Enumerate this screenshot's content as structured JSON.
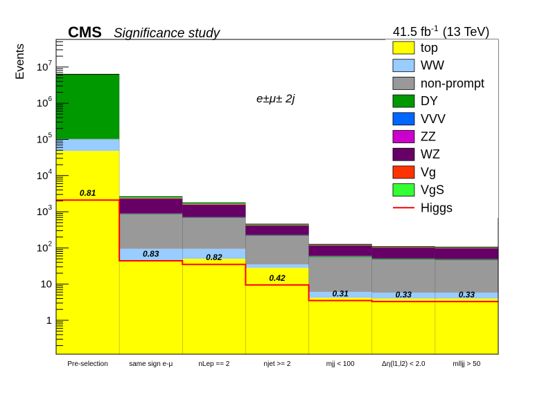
{
  "header": {
    "experiment": "CMS",
    "subtitle": "Significance study",
    "lumi": "41.5 fb",
    "lumi_exp": "-1",
    "energy": "(13 TeV)"
  },
  "annotation": "e±μ± 2j",
  "chart_data": {
    "type": "bar",
    "stacked": true,
    "ylabel": "Events",
    "log_y": true,
    "ylim": [
      0.1,
      50000000
    ],
    "y_ticks": [
      {
        "value": 1,
        "base": "1",
        "exp": ""
      },
      {
        "value": 10,
        "base": "10",
        "exp": ""
      },
      {
        "value": 100,
        "base": "10",
        "exp": "2"
      },
      {
        "value": 1000,
        "base": "10",
        "exp": "3"
      },
      {
        "value": 10000,
        "base": "10",
        "exp": "4"
      },
      {
        "value": 100000,
        "base": "10",
        "exp": "5"
      },
      {
        "value": 1000000,
        "base": "10",
        "exp": "6"
      },
      {
        "value": 10000000,
        "base": "10",
        "exp": "7"
      }
    ],
    "categories": [
      "Pre-selection",
      "same sign e-μ",
      "nLep == 2",
      "njet >= 2",
      "mjj < 100",
      "Δη(l1,l2) < 2.0",
      "mlljj > 50"
    ],
    "legend_position": "top-right",
    "series": [
      {
        "name": "top",
        "color": "#ffff00",
        "values": [
          48000,
          45,
          50,
          28,
          4.2,
          4.0,
          4.0
        ]
      },
      {
        "name": "WW",
        "color": "#99ccff",
        "values": [
          52000,
          50,
          45,
          7,
          1.9,
          1.8,
          1.8
        ]
      },
      {
        "name": "non-prompt",
        "color": "#999999",
        "values": [
          3000,
          750,
          580,
          180,
          50,
          42,
          40
        ]
      },
      {
        "name": "DY",
        "color": "#009900",
        "values": [
          6200000,
          30,
          25,
          8,
          3,
          2.5,
          2.5
        ]
      },
      {
        "name": "VVV",
        "color": "#0066ff",
        "values": [
          5,
          8,
          7,
          3,
          0.6,
          0.5,
          0.5
        ]
      },
      {
        "name": "ZZ",
        "color": "#cc00cc",
        "values": [
          30,
          20,
          15,
          4,
          0.7,
          0.6,
          0.6
        ]
      },
      {
        "name": "WZ",
        "color": "#660066",
        "values": [
          400,
          1400,
          850,
          190,
          57,
          50,
          49
        ]
      },
      {
        "name": "Vg",
        "color": "#ff3300",
        "values": [
          200,
          70,
          50,
          10,
          3,
          2.5,
          2.5
        ]
      },
      {
        "name": "VgS",
        "color": "#33ff33",
        "values": [
          150,
          230,
          140,
          25,
          5,
          4.4,
          4.3
        ]
      }
    ],
    "signal": {
      "name": "Higgs",
      "color": "#ff0000",
      "values": [
        2100,
        44,
        35,
        9.5,
        3.5,
        3.3,
        3.3
      ]
    },
    "significance_labels": [
      "0.81",
      "0.83",
      "0.82",
      "0.42",
      "0.31",
      "0.33",
      "0.33"
    ]
  }
}
